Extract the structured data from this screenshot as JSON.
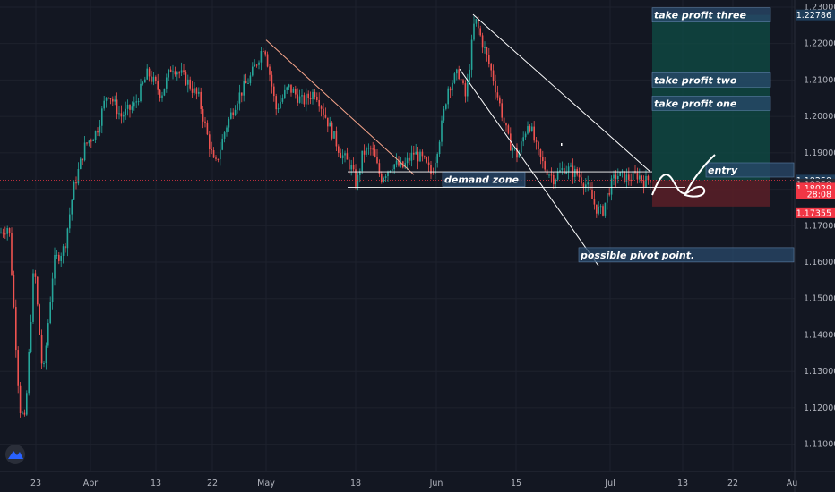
{
  "chart_data": {
    "type": "candlestick",
    "y_axis": {
      "min": 1.105,
      "max": 1.2295,
      "ticks": [
        "1.11000",
        "1.12000",
        "1.13000",
        "1.14000",
        "1.15000",
        "1.16000",
        "1.17000",
        "1.18000",
        "1.19000",
        "1.20000",
        "1.21000",
        "1.22000",
        "1.23000"
      ]
    },
    "x_axis": {
      "ticks": [
        "23",
        "Apr",
        "13",
        "22",
        "May",
        "18",
        "Jun",
        "15",
        "Jul",
        "13",
        "22",
        "Au"
      ]
    },
    "price_path": [
      [
        0,
        1.168
      ],
      [
        10,
        1.17
      ],
      [
        22,
        1.12
      ],
      [
        28,
        1.116
      ],
      [
        38,
        1.16
      ],
      [
        48,
        1.128
      ],
      [
        60,
        1.16
      ],
      [
        72,
        1.164
      ],
      [
        82,
        1.18
      ],
      [
        95,
        1.192
      ],
      [
        108,
        1.196
      ],
      [
        120,
        1.207
      ],
      [
        135,
        1.2
      ],
      [
        150,
        1.203
      ],
      [
        165,
        1.212
      ],
      [
        180,
        1.206
      ],
      [
        192,
        1.214
      ],
      [
        208,
        1.21
      ],
      [
        222,
        1.205
      ],
      [
        232,
        1.194
      ],
      [
        240,
        1.186
      ],
      [
        252,
        1.197
      ],
      [
        265,
        1.205
      ],
      [
        280,
        1.211
      ],
      [
        295,
        1.22
      ],
      [
        308,
        1.202
      ],
      [
        322,
        1.208
      ],
      [
        338,
        1.204
      ],
      [
        352,
        1.207
      ],
      [
        365,
        1.199
      ],
      [
        380,
        1.19
      ],
      [
        392,
        1.186
      ],
      [
        398,
        1.181
      ],
      [
        405,
        1.19
      ],
      [
        415,
        1.191
      ],
      [
        425,
        1.183
      ],
      [
        438,
        1.187
      ],
      [
        450,
        1.186
      ],
      [
        462,
        1.19
      ],
      [
        472,
        1.188
      ],
      [
        482,
        1.184
      ],
      [
        492,
        1.196
      ],
      [
        500,
        1.208
      ],
      [
        512,
        1.212
      ],
      [
        520,
        1.205
      ],
      [
        530,
        1.227
      ],
      [
        540,
        1.219
      ],
      [
        550,
        1.211
      ],
      [
        560,
        1.201
      ],
      [
        568,
        1.193
      ],
      [
        578,
        1.189
      ],
      [
        590,
        1.199
      ],
      [
        600,
        1.19
      ],
      [
        608,
        1.186
      ],
      [
        618,
        1.183
      ],
      [
        630,
        1.186
      ],
      [
        645,
        1.184
      ],
      [
        655,
        1.181
      ],
      [
        665,
        1.175
      ],
      [
        672,
        1.1735
      ],
      [
        680,
        1.18
      ],
      [
        688,
        1.184
      ],
      [
        700,
        1.183
      ],
      [
        712,
        1.184
      ],
      [
        720,
        1.182
      ],
      [
        728,
        1.1835
      ]
    ],
    "drawings": {
      "trendlines": [
        {
          "from": [
            297,
            1.221
          ],
          "to": [
            462,
            1.184
          ]
        },
        {
          "from": [
            528,
            1.228
          ],
          "to": [
            725,
            1.185
          ]
        },
        {
          "from": [
            513,
            1.213
          ],
          "to": [
            668,
            1.159
          ]
        }
      ],
      "horizontal_lines": [
        {
          "y": 1.1848,
          "x1": 388,
          "x2": 728
        },
        {
          "y": 1.1805,
          "x1": 388,
          "x2": 765
        }
      ],
      "price_line": 1.1825,
      "position": {
        "entry": 1.1825,
        "stop": 1.1787,
        "target": 1.22786,
        "x1": 728,
        "x2": 860
      }
    },
    "annotations": [
      {
        "text": "take profit three",
        "price": 1.22786,
        "x": 728
      },
      {
        "text": "take profit two",
        "price": 1.21,
        "x": 728
      },
      {
        "text": "take profit one",
        "price": 1.2036,
        "x": 728
      },
      {
        "text": "entry",
        "price": 1.1853,
        "x": 788
      },
      {
        "text": "demand zone",
        "price": 1.1827,
        "x": 494
      },
      {
        "text": "possible pivot point.",
        "price": 1.162,
        "x": 646
      }
    ],
    "price_tags": [
      {
        "label": "1.22786",
        "price": 1.22786,
        "color": "#1e3d5a"
      },
      {
        "label": "1.18250",
        "price": 1.1825,
        "color": "#1e3d5a"
      },
      {
        "label": "1.18250",
        "price": 1.1814,
        "color": "#2a2e39"
      },
      {
        "label": "1.18029",
        "price": 1.18029,
        "color": "#f23645"
      },
      {
        "label": "28:08",
        "price": 1.1787,
        "color": "#f23645"
      },
      {
        "label": "1.17355",
        "price": 1.17355,
        "color": "#f23645"
      }
    ]
  }
}
